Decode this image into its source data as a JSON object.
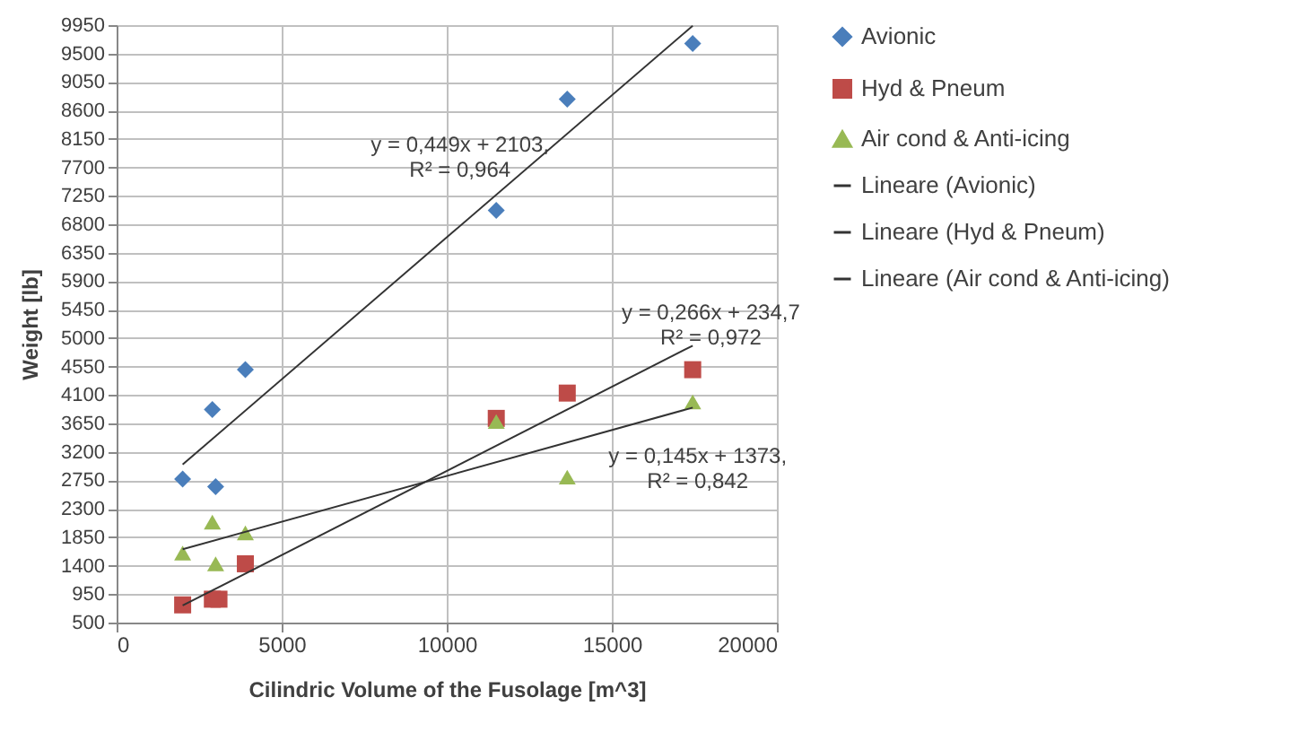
{
  "chart_data": {
    "type": "scatter",
    "xlabel": "Cilindric Volume of the Fusolage [m^3]",
    "ylabel": "Weight [lb]",
    "xlim": [
      0,
      20000
    ],
    "xticks": [
      0,
      5000,
      10000,
      15000,
      20000
    ],
    "ylim": [
      500,
      9950
    ],
    "yticks": [
      500,
      950,
      1400,
      1850,
      2300,
      2750,
      3200,
      3650,
      4100,
      4550,
      5000,
      5450,
      5900,
      6350,
      6800,
      7250,
      7700,
      8150,
      8600,
      9050,
      9500,
      9950
    ],
    "grid": true,
    "legend": "right",
    "series": [
      {
        "name": "Avionic",
        "marker": "diamond",
        "color": "#4a7ebb",
        "x": [
          2000,
          2900,
          3900,
          3000,
          11500,
          13650,
          17450
        ],
        "values": [
          2770,
          3870,
          4500,
          2650,
          7020,
          8780,
          9660
        ]
      },
      {
        "name": "Hyd & Pneum",
        "marker": "square",
        "color": "#be4b48",
        "x": [
          2000,
          2900,
          3100,
          3900,
          11500,
          13650,
          17450
        ],
        "values": [
          780,
          870,
          870,
          1430,
          3730,
          4130,
          4500
        ]
      },
      {
        "name": "Air cond & Anti-icing",
        "marker": "triangle",
        "color": "#98b954",
        "x": [
          2000,
          2900,
          3000,
          3900,
          11500,
          13650,
          17450
        ],
        "values": [
          1600,
          2090,
          1430,
          1920,
          3680,
          2800,
          3990
        ]
      },
      {
        "name": "Lineare (Avionic)",
        "type": "line",
        "line_style": "solid",
        "color": "#333333",
        "x": [
          2000,
          17450
        ],
        "values": [
          3000,
          9940
        ]
      },
      {
        "name": "Lineare (Hyd & Pneum)",
        "type": "line",
        "line_style": "solid",
        "color": "#333333",
        "x": [
          2000,
          17450
        ],
        "values": [
          770,
          4880
        ]
      },
      {
        "name": "Lineare (Air cond & Anti-icing)",
        "type": "line",
        "line_style": "solid",
        "color": "#333333",
        "x": [
          2000,
          17450
        ],
        "values": [
          1660,
          3900
        ]
      }
    ],
    "annotations": [
      "y = 0,449x + 2103,\nR² = 0,964",
      "y = 0,266x + 234,7\nR² = 0,972",
      "y = 0,145x + 1373,\nR² = 0,842"
    ]
  }
}
